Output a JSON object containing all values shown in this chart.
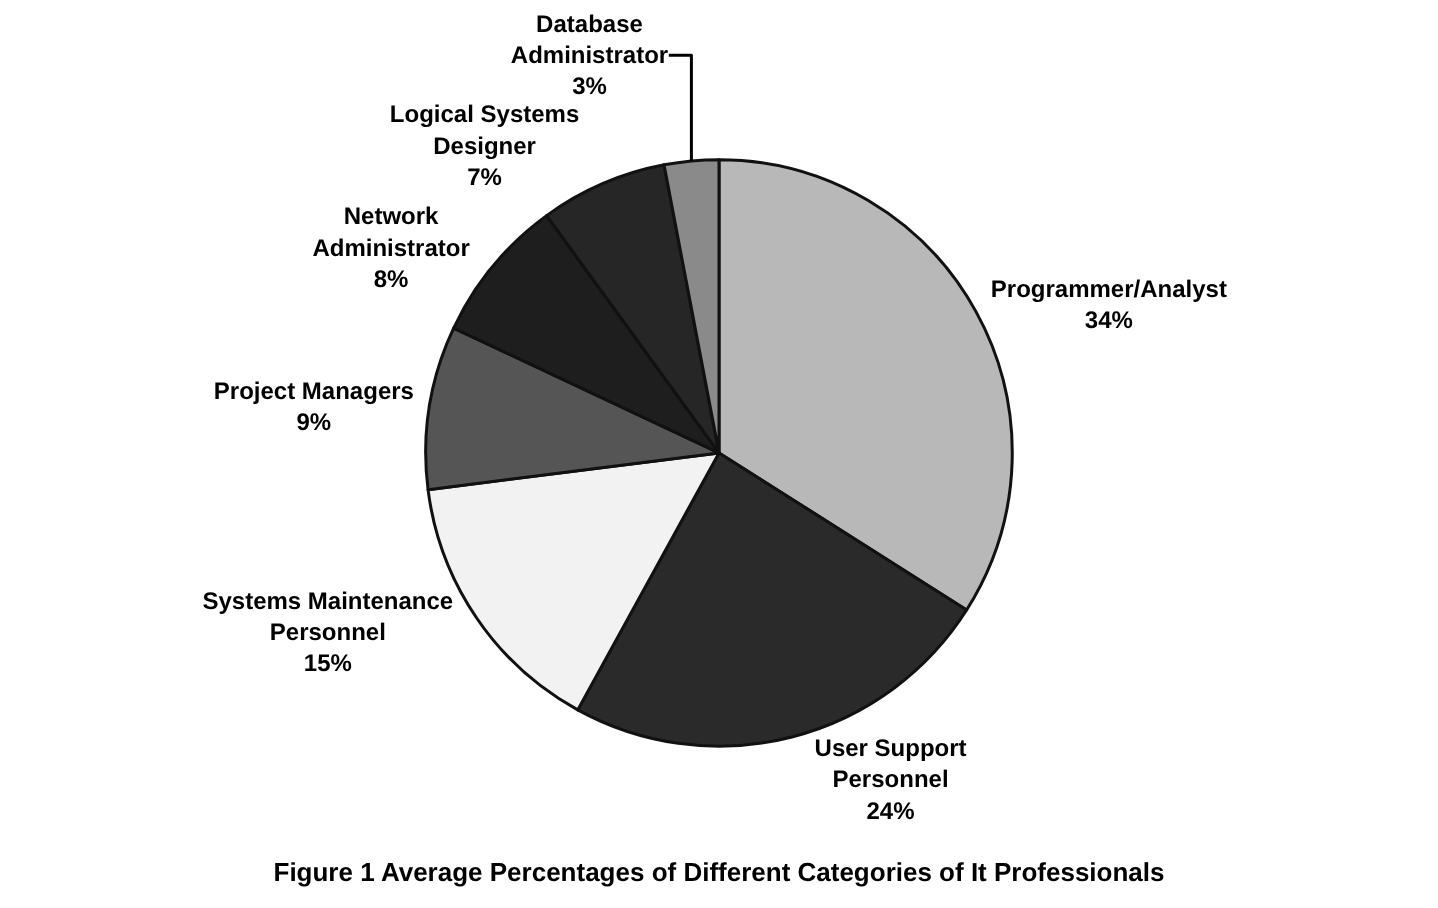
{
  "chart_data": {
    "type": "pie",
    "title": "Figure 1 Average Percentages of Different Categories of It Professionals",
    "categories": [
      "Programmer/Analyst",
      "User Support Personnel",
      "Systems Maintenance Personnel",
      "Project Managers",
      "Network Administrator",
      "Logical Systems Designer",
      "Database Administrator"
    ],
    "values": [
      34,
      24,
      15,
      9,
      8,
      7,
      3
    ],
    "value_labels": [
      "34%",
      "24%",
      "15%",
      "9%",
      "8%",
      "7%",
      "3%"
    ],
    "colors": [
      "#b8b8b8",
      "#2a2a2a",
      "#f2f2f2",
      "#555555",
      "#1e1e1e",
      "#262626",
      "#8a8a8a"
    ],
    "legend": false
  }
}
